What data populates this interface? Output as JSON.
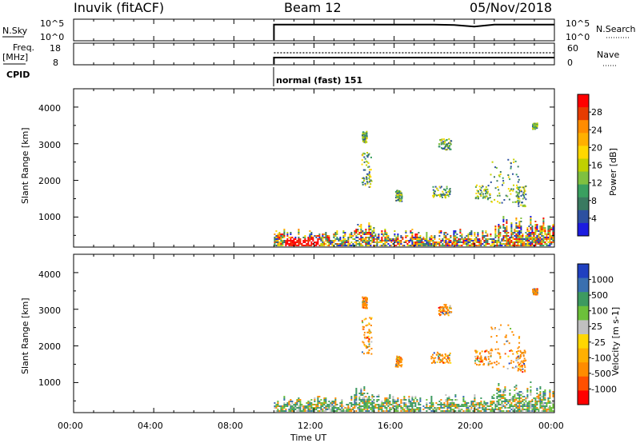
{
  "header": {
    "station": "Inuvik (fitACF)",
    "beam": "Beam 12",
    "date": "05/Nov/2018"
  },
  "top_panels": {
    "nsky_label": "N.Sky",
    "nsky_ticks": [
      "10^5",
      "10^0"
    ],
    "nsearch_label": "N.Search",
    "nsearch_ticks": [
      "10^5",
      "10^0"
    ],
    "freq_label_1": "Freq.",
    "freq_label_2": "[MHz]",
    "freq_ticks": [
      "18",
      "8"
    ],
    "nave_label": "Nave",
    "nave_ticks": [
      "60",
      "0"
    ],
    "cpid_label": "CPID",
    "cpid_text": "normal (fast) 151"
  },
  "chart_data": [
    {
      "type": "line",
      "title": "N.Sky / N.Search",
      "x": [
        "10:00",
        "12:00",
        "14:00",
        "16:00",
        "18:00",
        "20:00",
        "22:00",
        "24:00"
      ],
      "series": [
        {
          "name": "N.Sky",
          "values": [
            4.0,
            4.0,
            4.0,
            4.0,
            4.0,
            3.9,
            4.0,
            4.0
          ]
        },
        {
          "name": "N.Search",
          "values": [
            4.0,
            4.0,
            4.0,
            4.0,
            4.0,
            3.9,
            4.0,
            4.0
          ]
        }
      ]
    },
    {
      "type": "line",
      "title": "Freq. / Nave",
      "x": [
        "10:00",
        "12:00",
        "14:00",
        "16:00",
        "18:00",
        "20:00",
        "22:00",
        "24:00"
      ],
      "series": [
        {
          "name": "Freq.",
          "values": [
            10,
            10,
            10,
            10,
            10,
            10,
            10,
            10
          ]
        },
        {
          "name": "Nave",
          "values": [
            20,
            20,
            20,
            20,
            20,
            20,
            20,
            20
          ]
        }
      ]
    },
    {
      "type": "heatmap",
      "ylabel": "Slant Range [km]",
      "colorbar_label": "Power [dB]",
      "colorbar_ticks": [
        "28",
        "24",
        "20",
        "16",
        "12",
        "8",
        "4"
      ],
      "colors": [
        "#ff0000",
        "#e73c00",
        "#ff8c00",
        "#ffb000",
        "#ffd800",
        "#c0d000",
        "#7fc040",
        "#3aa060",
        "#3a7a60",
        "#2d50a0",
        "#1c1ce0"
      ],
      "ylim": [
        180,
        4500
      ],
      "yticks": [
        "4000",
        "3000",
        "2000",
        "1000"
      ]
    },
    {
      "type": "heatmap",
      "ylabel": "Slant Range [km]",
      "colorbar_label": "Velocity [m s-1]",
      "colorbar_ticks": [
        "1000",
        "500",
        "100",
        "25",
        "-25",
        "-100",
        "-500",
        "-1000"
      ],
      "colors": [
        "#2040c0",
        "#3a70b0",
        "#3d9a60",
        "#6cc03a",
        "#c0c0c0",
        "#ffd700",
        "#ffb000",
        "#ff8c00",
        "#ff5000",
        "#ff0000"
      ],
      "ylim": [
        180,
        4500
      ],
      "yticks": [
        "4000",
        "3000",
        "2000",
        "1000"
      ]
    }
  ],
  "xaxis": {
    "ticks": [
      "00:00",
      "04:00",
      "08:00",
      "12:00",
      "16:00",
      "20:00",
      "00:00"
    ],
    "label": "Time UT"
  }
}
